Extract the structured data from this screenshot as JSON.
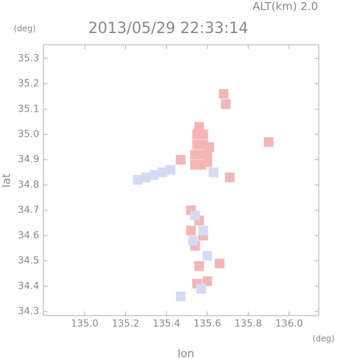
{
  "chart_data": {
    "type": "scatter",
    "title": "2013/05/29 22:33:14",
    "subtitle": "ALT(km) 2.0",
    "y_unit": "(deg)",
    "x_unit": "(deg)",
    "xlabel": "lon",
    "ylabel": "lat",
    "xlim": [
      134.798,
      136.145
    ],
    "ylim": [
      34.284,
      35.354
    ],
    "xticks": [
      {
        "value": 135.0,
        "label": "135.0"
      },
      135.2,
      135.4,
      135.6,
      135.8,
      {
        "value": 136.0,
        "label": "136.0"
      }
    ],
    "yticks": [
      34.3,
      34.4,
      34.5,
      34.6,
      34.7,
      34.8,
      34.9,
      {
        "value": 35.0,
        "label": "35.0"
      },
      35.1,
      35.2,
      35.3
    ],
    "series": [
      {
        "color": "#f5b5b5",
        "x": [
          135.54,
          135.57,
          135.6,
          135.54,
          135.57,
          135.6,
          135.55,
          135.58,
          135.61,
          135.55,
          135.58,
          135.56,
          135.68,
          135.69,
          135.71,
          135.52,
          135.56,
          135.52,
          135.58,
          135.54,
          135.56,
          135.66,
          135.6,
          135.55,
          135.9,
          135.47
        ],
        "y": [
          34.88,
          34.88,
          34.89,
          34.92,
          34.92,
          34.92,
          34.96,
          34.96,
          34.95,
          35.0,
          35.0,
          35.03,
          35.16,
          35.12,
          34.83,
          34.7,
          34.66,
          34.62,
          34.6,
          34.56,
          34.48,
          34.49,
          34.42,
          34.41,
          34.97,
          34.9
        ]
      },
      {
        "color": "#d5daf7",
        "x": [
          135.26,
          135.3,
          135.34,
          135.38,
          135.42,
          135.54,
          135.58,
          135.53,
          135.6,
          135.47,
          135.57,
          135.63
        ],
        "y": [
          34.82,
          34.83,
          34.84,
          34.85,
          34.86,
          34.68,
          34.62,
          34.58,
          34.52,
          34.36,
          34.39,
          34.85
        ]
      }
    ]
  }
}
